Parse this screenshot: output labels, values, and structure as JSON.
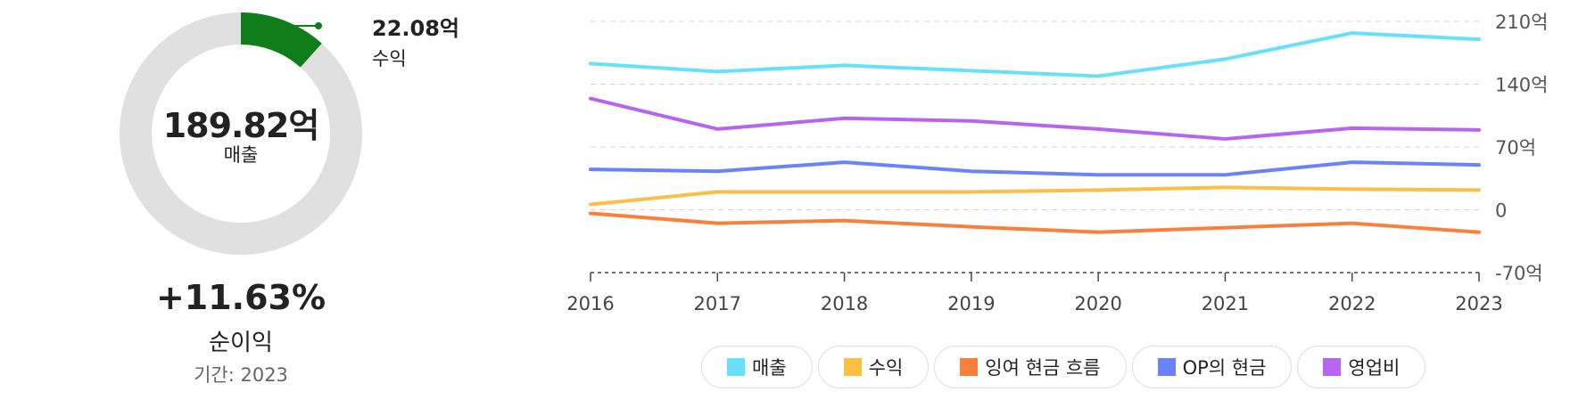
{
  "donut": {
    "center_value": "189.82억",
    "center_label": "매출",
    "callout_value": "22.08억",
    "callout_label": "수익",
    "highlight_fraction": 0.1163,
    "highlight_color": "#0f7d1a",
    "track_color": "#e0e0e0",
    "change_value": "+11.63%",
    "change_label": "순이익",
    "period_label": "기간:",
    "period_value": "2023"
  },
  "chart_data": {
    "type": "line",
    "x": [
      "2016",
      "2017",
      "2018",
      "2019",
      "2020",
      "2021",
      "2022",
      "2023"
    ],
    "y_ticks": [
      "210억",
      "140억",
      "70억",
      "0",
      "-70억"
    ],
    "y_tick_values": [
      210,
      140,
      70,
      0,
      -70
    ],
    "ylim": [
      -70,
      210
    ],
    "grid": true,
    "legend_position": "bottom",
    "series": [
      {
        "name": "매출",
        "color": "#67e0fb",
        "values": [
          163,
          154,
          161,
          155,
          149,
          168,
          197,
          190
        ]
      },
      {
        "name": "수익",
        "color": "#fbbf45",
        "values": [
          6,
          20,
          20,
          20,
          22,
          25,
          23,
          22
        ]
      },
      {
        "name": "잉여 현금 흐름",
        "color": "#fb7f3c",
        "values": [
          -4,
          -15,
          -12,
          -19,
          -25,
          -20,
          -15,
          -25
        ]
      },
      {
        "name": "OP의 현금",
        "color": "#6a83f8",
        "values": [
          45,
          43,
          53,
          43,
          39,
          39,
          53,
          50
        ]
      },
      {
        "name": "영업비",
        "color": "#b864f2",
        "values": [
          124,
          90,
          102,
          99,
          90,
          79,
          91,
          89
        ]
      }
    ]
  }
}
